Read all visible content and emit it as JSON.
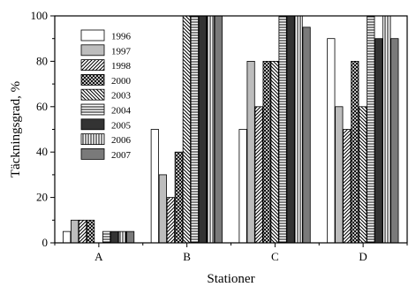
{
  "chart_data": {
    "type": "bar",
    "title": "",
    "xlabel": "Stationer",
    "ylabel": "Täckningsgrad, %",
    "categories": [
      "A",
      "B",
      "C",
      "D"
    ],
    "ylim": [
      0,
      100
    ],
    "yticks": [
      "0",
      "20",
      "40",
      "60",
      "80",
      "100"
    ],
    "grid": false,
    "legend_position": "top-left",
    "series": [
      {
        "name": "1996",
        "pattern": "white",
        "values": [
          5,
          50,
          50,
          90
        ]
      },
      {
        "name": "1997",
        "pattern": "lightgray",
        "values": [
          10,
          30,
          80,
          60
        ]
      },
      {
        "name": "1998",
        "pattern": "diag-fwd",
        "values": [
          10,
          20,
          60,
          50
        ]
      },
      {
        "name": "2000",
        "pattern": "crosshatch",
        "values": [
          10,
          40,
          80,
          80
        ]
      },
      {
        "name": "2003",
        "pattern": "diag-back",
        "values": [
          0,
          100,
          80,
          60
        ]
      },
      {
        "name": "2004",
        "pattern": "horiz",
        "values": [
          5,
          100,
          100,
          100
        ]
      },
      {
        "name": "2005",
        "pattern": "black",
        "values": [
          5,
          100,
          100,
          90
        ]
      },
      {
        "name": "2006",
        "pattern": "vert",
        "values": [
          5,
          100,
          100,
          100
        ]
      },
      {
        "name": "2007",
        "pattern": "gray",
        "values": [
          5,
          100,
          95,
          90
        ]
      }
    ]
  }
}
